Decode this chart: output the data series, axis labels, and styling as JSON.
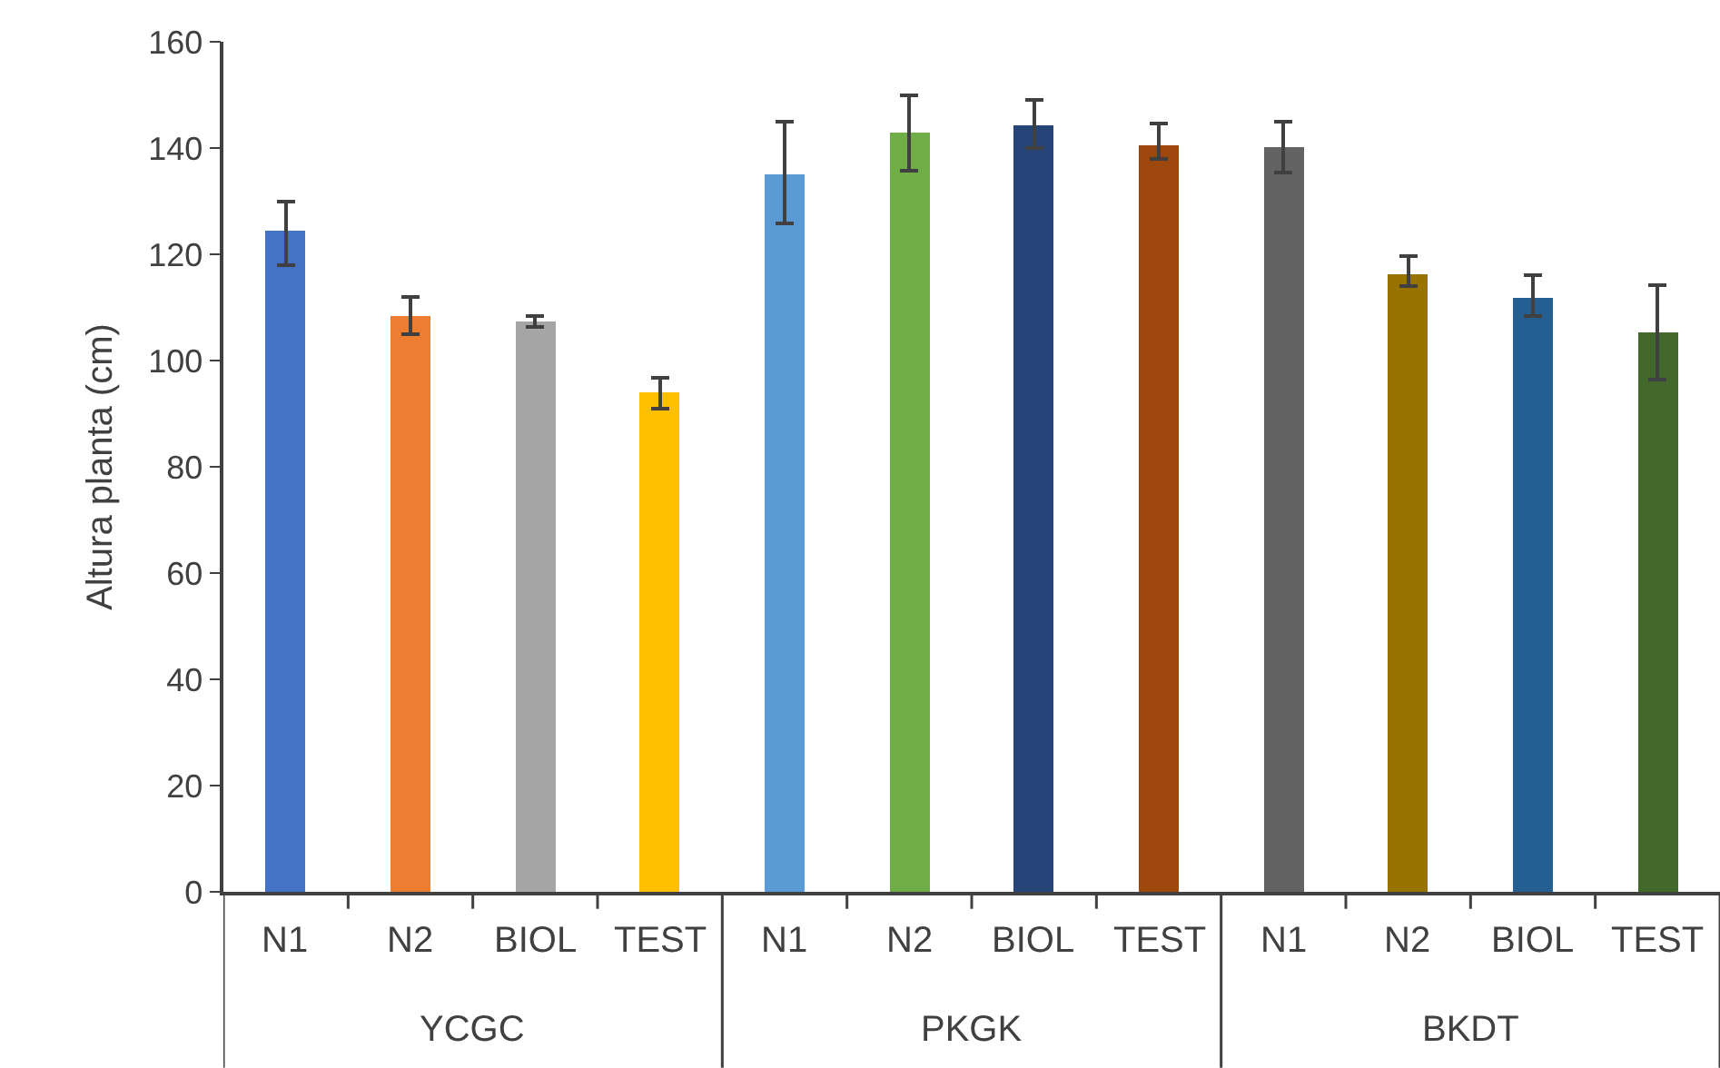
{
  "chart_data": {
    "type": "bar",
    "ylabel": "Altura planta (cm)",
    "categories": [
      "N1",
      "N2",
      "BIOL",
      "TEST",
      "N1",
      "N2",
      "BIOL",
      "TEST",
      "N1",
      "N2",
      "BIOL",
      "TEST"
    ],
    "values": [
      124.4,
      108.4,
      107.4,
      94,
      135,
      143,
      144.3,
      140.5,
      140.2,
      116.2,
      111.8,
      105.3
    ],
    "colors": [
      "#4472c4",
      "#ed7d31",
      "#a5a5a5",
      "#ffc000",
      "#5b9bd5",
      "#70ad47",
      "#264478",
      "#9e480e",
      "#636363",
      "#997300",
      "#255e91",
      "#43682b"
    ],
    "errors": [
      [
        118,
        130
      ],
      [
        105,
        112
      ],
      [
        106.3,
        108.4
      ],
      [
        91,
        96.8
      ],
      [
        125.8,
        145
      ],
      [
        135.7,
        150
      ],
      [
        140,
        149
      ],
      [
        138,
        144.6
      ],
      [
        135.4,
        145
      ],
      [
        114,
        119.7
      ],
      [
        108.4,
        116
      ],
      [
        96.4,
        114.2
      ]
    ],
    "annotations": [
      "YCGC",
      "PKGK",
      "BKDT"
    ],
    "ylim": [
      0,
      160
    ],
    "yticks": [
      0,
      20,
      40,
      60,
      80,
      100,
      120,
      140,
      160
    ],
    "grid": false
  }
}
